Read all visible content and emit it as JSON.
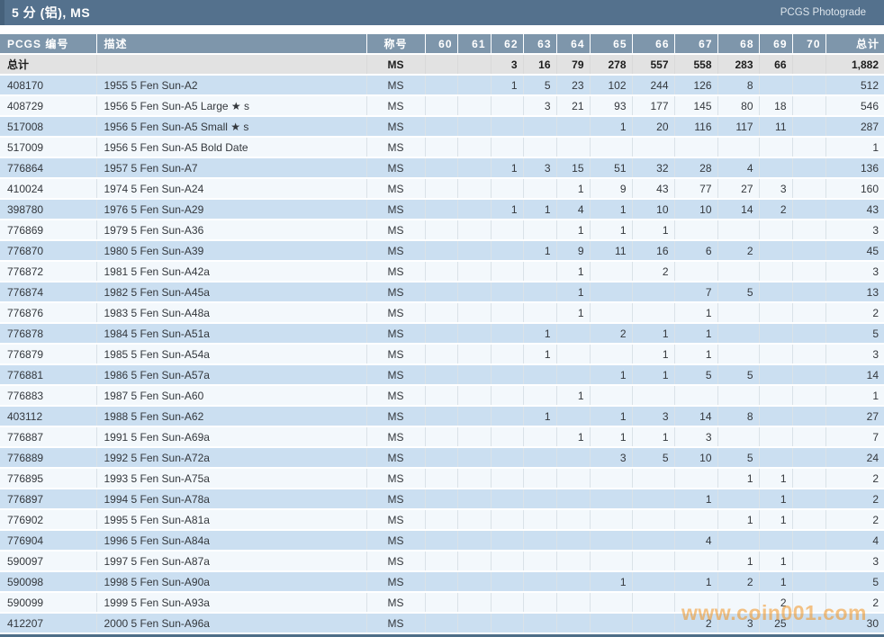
{
  "title_bar": {
    "title": "5 分 (铝), MS",
    "right_label": "PCGS Photograde"
  },
  "table": {
    "columns": [
      "PCGS 编号",
      "描述",
      "称号",
      "60",
      "61",
      "62",
      "63",
      "64",
      "65",
      "66",
      "67",
      "68",
      "69",
      "70",
      "总计"
    ],
    "total_row": [
      "总计",
      "",
      "MS",
      "",
      "",
      "3",
      "16",
      "79",
      "278",
      "557",
      "558",
      "283",
      "66",
      "",
      "1,882"
    ],
    "rows": [
      [
        "408170",
        "1955 5 Fen Sun-A2",
        "MS",
        "",
        "",
        "1",
        "5",
        "23",
        "102",
        "244",
        "126",
        "8",
        "",
        "",
        "512"
      ],
      [
        "408729",
        "1956 5 Fen Sun-A5 Large ★ s",
        "MS",
        "",
        "",
        "",
        "3",
        "21",
        "93",
        "177",
        "145",
        "80",
        "18",
        "",
        "546"
      ],
      [
        "517008",
        "1956 5 Fen Sun-A5 Small ★ s",
        "MS",
        "",
        "",
        "",
        "",
        "",
        "1",
        "20",
        "116",
        "117",
        "11",
        "",
        "287"
      ],
      [
        "517009",
        "1956 5 Fen Sun-A5 Bold Date",
        "MS",
        "",
        "",
        "",
        "",
        "",
        "",
        "",
        "",
        "",
        "",
        "",
        "1"
      ],
      [
        "776864",
        "1957 5 Fen Sun-A7",
        "MS",
        "",
        "",
        "1",
        "3",
        "15",
        "51",
        "32",
        "28",
        "4",
        "",
        "",
        "136"
      ],
      [
        "410024",
        "1974 5 Fen Sun-A24",
        "MS",
        "",
        "",
        "",
        "",
        "1",
        "9",
        "43",
        "77",
        "27",
        "3",
        "",
        "160"
      ],
      [
        "398780",
        "1976 5 Fen Sun-A29",
        "MS",
        "",
        "",
        "1",
        "1",
        "4",
        "1",
        "10",
        "10",
        "14",
        "2",
        "",
        "43"
      ],
      [
        "776869",
        "1979 5 Fen Sun-A36",
        "MS",
        "",
        "",
        "",
        "",
        "1",
        "1",
        "1",
        "",
        "",
        "",
        "",
        "3"
      ],
      [
        "776870",
        "1980 5 Fen Sun-A39",
        "MS",
        "",
        "",
        "",
        "1",
        "9",
        "11",
        "16",
        "6",
        "2",
        "",
        "",
        "45"
      ],
      [
        "776872",
        "1981 5 Fen Sun-A42a",
        "MS",
        "",
        "",
        "",
        "",
        "1",
        "",
        "2",
        "",
        "",
        "",
        "",
        "3"
      ],
      [
        "776874",
        "1982 5 Fen Sun-A45a",
        "MS",
        "",
        "",
        "",
        "",
        "1",
        "",
        "",
        "7",
        "5",
        "",
        "",
        "13"
      ],
      [
        "776876",
        "1983 5 Fen Sun-A48a",
        "MS",
        "",
        "",
        "",
        "",
        "1",
        "",
        "",
        "1",
        "",
        "",
        "",
        "2"
      ],
      [
        "776878",
        "1984 5 Fen Sun-A51a",
        "MS",
        "",
        "",
        "",
        "1",
        "",
        "2",
        "1",
        "1",
        "",
        "",
        "",
        "5"
      ],
      [
        "776879",
        "1985 5 Fen Sun-A54a",
        "MS",
        "",
        "",
        "",
        "1",
        "",
        "",
        "1",
        "1",
        "",
        "",
        "",
        "3"
      ],
      [
        "776881",
        "1986 5 Fen Sun-A57a",
        "MS",
        "",
        "",
        "",
        "",
        "",
        "1",
        "1",
        "5",
        "5",
        "",
        "",
        "14"
      ],
      [
        "776883",
        "1987 5 Fen Sun-A60",
        "MS",
        "",
        "",
        "",
        "",
        "1",
        "",
        "",
        "",
        "",
        "",
        "",
        "1"
      ],
      [
        "403112",
        "1988 5 Fen Sun-A62",
        "MS",
        "",
        "",
        "",
        "1",
        "",
        "1",
        "3",
        "14",
        "8",
        "",
        "",
        "27"
      ],
      [
        "776887",
        "1991 5 Fen Sun-A69a",
        "MS",
        "",
        "",
        "",
        "",
        "1",
        "1",
        "1",
        "3",
        "",
        "",
        "",
        "7"
      ],
      [
        "776889",
        "1992 5 Fen Sun-A72a",
        "MS",
        "",
        "",
        "",
        "",
        "",
        "3",
        "5",
        "10",
        "5",
        "",
        "",
        "24"
      ],
      [
        "776895",
        "1993 5 Fen Sun-A75a",
        "MS",
        "",
        "",
        "",
        "",
        "",
        "",
        "",
        "",
        "1",
        "1",
        "",
        "2"
      ],
      [
        "776897",
        "1994 5 Fen Sun-A78a",
        "MS",
        "",
        "",
        "",
        "",
        "",
        "",
        "",
        "1",
        "",
        "1",
        "",
        "2"
      ],
      [
        "776902",
        "1995 5 Fen Sun-A81a",
        "MS",
        "",
        "",
        "",
        "",
        "",
        "",
        "",
        "",
        "1",
        "1",
        "",
        "2"
      ],
      [
        "776904",
        "1996 5 Fen Sun-A84a",
        "MS",
        "",
        "",
        "",
        "",
        "",
        "",
        "",
        "4",
        "",
        "",
        "",
        "4"
      ],
      [
        "590097",
        "1997 5 Fen Sun-A87a",
        "MS",
        "",
        "",
        "",
        "",
        "",
        "",
        "",
        "",
        "1",
        "1",
        "",
        "3"
      ],
      [
        "590098",
        "1998 5 Fen Sun-A90a",
        "MS",
        "",
        "",
        "",
        "",
        "",
        "1",
        "",
        "1",
        "2",
        "1",
        "",
        "5"
      ],
      [
        "590099",
        "1999 5 Fen Sun-A93a",
        "MS",
        "",
        "",
        "",
        "",
        "",
        "",
        "",
        "",
        "",
        "2",
        "",
        "2"
      ],
      [
        "412207",
        "2000 5 Fen Sun-A96a",
        "MS",
        "",
        "",
        "",
        "",
        "",
        "",
        "",
        "2",
        "3",
        "25",
        "",
        "30"
      ]
    ]
  },
  "watermark": "www.coin001.com",
  "colors": {
    "title_bar": "#54718d",
    "title_bar_accent": "#46617b",
    "header_row": "#7e96ab",
    "total_row_bg": "#e2e2e2",
    "row_blue": "#cbdff1",
    "row_white": "#f3f8fc",
    "pcgs_number": "#a9735e",
    "text_dark": "#33373c",
    "bottom_border": "#4d6d87",
    "watermark": "#f29422"
  }
}
